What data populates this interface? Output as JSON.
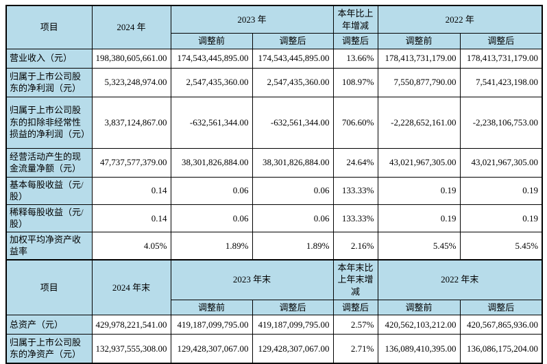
{
  "colors": {
    "header_bg": "#b7dcea",
    "border": "#000000",
    "page_bg": "#ffffff",
    "text": "#000000"
  },
  "tables": [
    {
      "name": "annual-key-figures",
      "header": {
        "item": "项目",
        "col_current": "2024 年",
        "col_prior": "2023 年",
        "col_change": "本年比上年增减",
        "col_prior2": "2022 年",
        "sub": [
          "调整前",
          "调整后",
          "调整后",
          "调整前",
          "调整后"
        ]
      },
      "rows": [
        {
          "label": "营业收入（元）",
          "values": [
            "198,380,605,661.00",
            "174,543,445,895.00",
            "174,543,445,895.00",
            "13.66%",
            "178,413,731,179.00",
            "178,413,731,179.00"
          ]
        },
        {
          "label": "归属于上市公司股东的净利润（元）",
          "values": [
            "5,323,248,974.00",
            "2,547,435,360.00",
            "2,547,435,360.00",
            "108.97%",
            "7,550,877,790.00",
            "7,541,423,198.00"
          ]
        },
        {
          "label": "归属于上市公司股东的扣除非经常性损益的净利润（元）",
          "values": [
            "3,837,124,867.00",
            "-632,561,344.00",
            "-632,561,344.00",
            "706.60%",
            "-2,228,652,161.00",
            "-2,238,106,753.00"
          ]
        },
        {
          "label": "经营活动产生的现金流量净额（元）",
          "values": [
            "47,737,577,379.00",
            "38,301,826,884.00",
            "38,301,826,884.00",
            "24.64%",
            "43,021,967,305.00",
            "43,021,967,305.00"
          ]
        },
        {
          "label": "基本每股收益（元/股）",
          "values": [
            "0.14",
            "0.06",
            "0.06",
            "133.33%",
            "0.19",
            "0.19"
          ]
        },
        {
          "label": "稀释每股收益（元/股）",
          "values": [
            "0.14",
            "0.06",
            "0.06",
            "133.33%",
            "0.19",
            "0.19"
          ]
        },
        {
          "label": "加权平均净资产收益率",
          "values": [
            "4.05%",
            "1.89%",
            "1.89%",
            "2.16%",
            "5.45%",
            "5.45%"
          ]
        }
      ]
    },
    {
      "name": "period-end-key-figures",
      "header": {
        "item": "项目",
        "col_current": "2024 年末",
        "col_prior": "2023 年末",
        "col_change": "本年末比上年末增减",
        "col_prior2": "2022 年末",
        "sub": [
          "调整前",
          "调整后",
          "调整后",
          "调整前",
          "调整后"
        ]
      },
      "rows": [
        {
          "label": "总资产（元）",
          "values": [
            "429,978,221,541.00",
            "419,187,099,795.00",
            "419,187,099,795.00",
            "2.57%",
            "420,562,103,212.00",
            "420,567,865,936.00"
          ]
        },
        {
          "label": "归属于上市公司股东的净资产（元）",
          "values": [
            "132,937,555,308.00",
            "129,428,307,067.00",
            "129,428,307,067.00",
            "2.71%",
            "136,089,410,395.00",
            "136,086,175,204.00"
          ]
        }
      ]
    }
  ]
}
